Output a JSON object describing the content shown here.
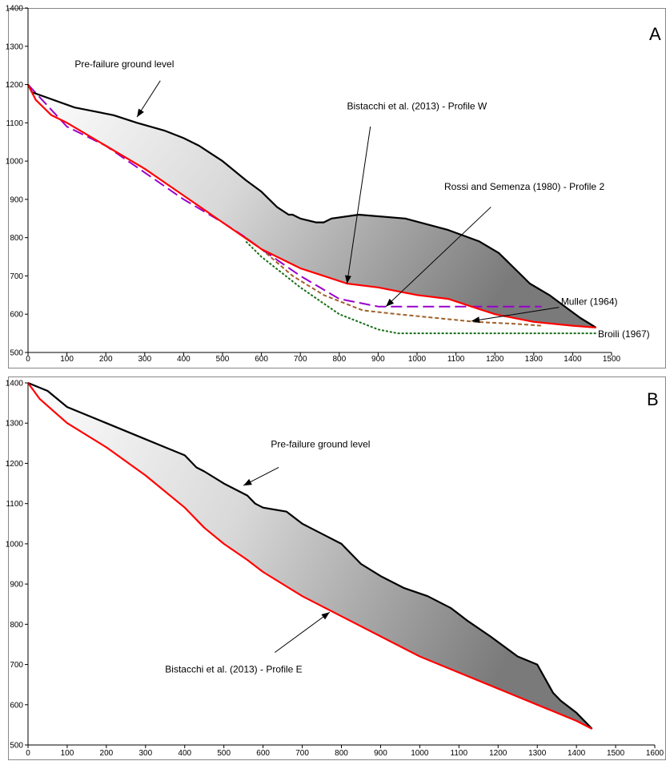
{
  "chart_data": [
    {
      "type": "line",
      "panel_label": "A",
      "xlim": [
        0,
        1500
      ],
      "ylim": [
        500,
        1400
      ],
      "x_ticks": [
        0,
        100,
        200,
        300,
        400,
        500,
        600,
        700,
        800,
        900,
        1000,
        1100,
        1200,
        1300,
        1400,
        1500
      ],
      "y_ticks": [
        500,
        600,
        700,
        800,
        900,
        1000,
        1100,
        1200,
        1300,
        1400
      ],
      "grid": false,
      "fill_between": [
        "Pre-failure ground level",
        "Bistacchi et al. (2013) - Profile W"
      ],
      "series": [
        {
          "name": "Pre-failure ground level",
          "color": "#000000",
          "dash": "solid",
          "x": [
            0,
            10,
            120,
            220,
            280,
            350,
            400,
            440,
            500,
            560,
            600,
            640,
            670,
            680,
            700,
            740,
            760,
            780,
            850,
            970,
            1080,
            1160,
            1210,
            1270,
            1290,
            1340,
            1380,
            1420,
            1460
          ],
          "y": [
            1200,
            1180,
            1140,
            1120,
            1100,
            1080,
            1060,
            1040,
            1000,
            950,
            920,
            880,
            860,
            860,
            850,
            840,
            840,
            850,
            860,
            850,
            820,
            790,
            760,
            700,
            680,
            650,
            620,
            590,
            565
          ]
        },
        {
          "name": "Bistacchi et al. (2013) - Profile W",
          "color": "#ff0000",
          "dash": "solid",
          "x": [
            0,
            20,
            60,
            100,
            200,
            300,
            400,
            500,
            600,
            700,
            760,
            820,
            900,
            1000,
            1080,
            1140,
            1200,
            1300,
            1400,
            1460
          ],
          "y": [
            1200,
            1160,
            1120,
            1100,
            1040,
            980,
            910,
            840,
            770,
            720,
            700,
            680,
            670,
            650,
            640,
            620,
            600,
            580,
            570,
            565
          ]
        },
        {
          "name": "Rossi and Semenza (1980) - Profile 2",
          "color": "#9900cc",
          "dash": "long-dash",
          "x": [
            0,
            100,
            200,
            300,
            400,
            500,
            560,
            600,
            700,
            800,
            900,
            950,
            1000,
            1100,
            1200,
            1320
          ],
          "y": [
            1200,
            1090,
            1040,
            970,
            900,
            840,
            800,
            770,
            700,
            640,
            620,
            620,
            620,
            620,
            620,
            620
          ]
        },
        {
          "name": "Muller (1964)",
          "color": "#a0602a",
          "dash": "short-dash",
          "x": [
            560,
            600,
            680,
            760,
            860,
            950,
            1050,
            1150,
            1250,
            1320
          ],
          "y": [
            800,
            770,
            700,
            650,
            610,
            600,
            590,
            580,
            575,
            570
          ]
        },
        {
          "name": "Broili (1967)",
          "color": "#1a6e1a",
          "dash": "dotted",
          "x": [
            560,
            600,
            700,
            800,
            900,
            950,
            1000,
            1100,
            1200,
            1300,
            1400,
            1460
          ],
          "y": [
            790,
            750,
            670,
            600,
            560,
            550,
            550,
            550,
            550,
            550,
            550,
            550
          ]
        }
      ],
      "annotations": [
        {
          "text": "Pre-failure ground level",
          "label_at": [
            120,
            1245
          ],
          "arrow_from": [
            340,
            1210
          ],
          "arrow_to": [
            280,
            1115
          ]
        },
        {
          "text": "Bistacchi et al. (2013) - Profile W",
          "label_at": [
            820,
            1135
          ],
          "arrow_from": [
            880,
            1090
          ],
          "arrow_to": [
            820,
            680
          ]
        },
        {
          "text": "Rossi and Semenza (1980) - Profile 2",
          "label_at": [
            1070,
            925
          ],
          "arrow_from": [
            1190,
            880
          ],
          "arrow_to": [
            920,
            620
          ]
        },
        {
          "text": "Muller (1964)",
          "label_at": [
            1370,
            625
          ],
          "arrow_from": [
            1365,
            618
          ],
          "arrow_to": [
            1140,
            582
          ]
        },
        {
          "text": "Broili (1967)",
          "label_at": [
            1465,
            540
          ],
          "arrow_from": null,
          "arrow_to": null
        }
      ]
    },
    {
      "type": "line",
      "panel_label": "B",
      "xlim": [
        0,
        1600
      ],
      "ylim": [
        500,
        1400
      ],
      "x_ticks": [
        0,
        100,
        200,
        300,
        400,
        500,
        600,
        700,
        800,
        900,
        1000,
        1100,
        1200,
        1300,
        1400,
        1500,
        1600
      ],
      "y_ticks": [
        500,
        600,
        700,
        800,
        900,
        1000,
        1100,
        1200,
        1300,
        1400
      ],
      "grid": false,
      "fill_between": [
        "Pre-failure ground level",
        "Bistacchi et al. (2013) - Profile E"
      ],
      "series": [
        {
          "name": "Pre-failure ground level",
          "color": "#000000",
          "dash": "solid",
          "x": [
            0,
            50,
            100,
            200,
            300,
            350,
            400,
            430,
            450,
            500,
            560,
            580,
            600,
            660,
            700,
            720,
            760,
            800,
            850,
            900,
            960,
            1020,
            1080,
            1120,
            1180,
            1250,
            1300,
            1340,
            1360,
            1400,
            1440
          ],
          "y": [
            1400,
            1380,
            1340,
            1300,
            1260,
            1240,
            1220,
            1190,
            1180,
            1150,
            1120,
            1100,
            1090,
            1080,
            1050,
            1040,
            1020,
            1000,
            950,
            920,
            890,
            870,
            840,
            810,
            770,
            720,
            700,
            630,
            610,
            580,
            540
          ]
        },
        {
          "name": "Bistacchi et al. (2013) - Profile E",
          "color": "#ff0000",
          "dash": "solid",
          "x": [
            0,
            30,
            100,
            200,
            300,
            400,
            450,
            500,
            560,
            600,
            700,
            800,
            900,
            1000,
            1100,
            1200,
            1300,
            1350,
            1400,
            1440
          ],
          "y": [
            1400,
            1360,
            1300,
            1240,
            1170,
            1090,
            1040,
            1000,
            960,
            930,
            870,
            820,
            770,
            720,
            680,
            640,
            600,
            580,
            560,
            540
          ]
        }
      ],
      "annotations": [
        {
          "text": "Pre-failure ground level",
          "label_at": [
            620,
            1240
          ],
          "arrow_from": [
            640,
            1190
          ],
          "arrow_to": [
            550,
            1145
          ]
        },
        {
          "text": "Bistacchi et al. (2013) - Profile E",
          "label_at": [
            350,
            680
          ],
          "arrow_from": [
            630,
            730
          ],
          "arrow_to": [
            770,
            830
          ]
        }
      ]
    }
  ]
}
